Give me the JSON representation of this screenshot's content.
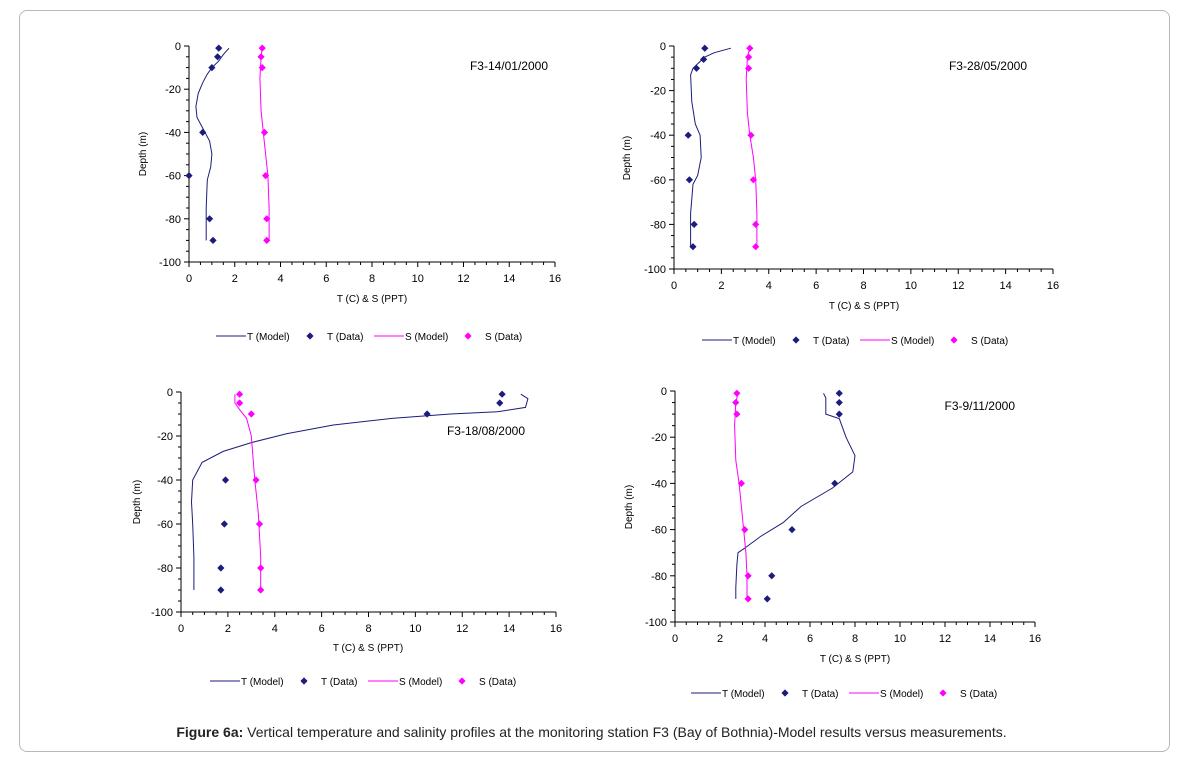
{
  "caption": {
    "label": "Figure 6a:",
    "text": " Vertical temperature and salinity profiles at the monitoring station F3 (Bay of Bothnia)-Model results versus measurements."
  },
  "colors": {
    "temperature": "#1c1c7c",
    "salinity": "#ff00ff",
    "axis": "#000000"
  },
  "chart_data": [
    {
      "type": "line",
      "title": "F3-14/01/2000",
      "xlabel": "T (C) & S (PPT)",
      "ylabel": "Depth (m)",
      "xlim": [
        0,
        16
      ],
      "ylim": [
        -100,
        0
      ],
      "xticks": [
        "0",
        "2",
        "4",
        "6",
        "8",
        "10",
        "12",
        "14",
        "16"
      ],
      "yticks": [
        "0",
        "-20",
        "-40",
        "-60",
        "-80",
        "-100"
      ],
      "legend": [
        "T (Model)",
        "T (Data)",
        "S (Model)",
        "S (Data)"
      ],
      "series": [
        {
          "name": "T (Model)",
          "kind": "line",
          "x": [
            1.75,
            1.5,
            1.3,
            1.0,
            0.8,
            0.6,
            0.4,
            0.3,
            0.35,
            0.6,
            0.9,
            1.0,
            0.95,
            0.8,
            0.75,
            0.75
          ],
          "y": [
            -1,
            -4,
            -7,
            -10,
            -13,
            -17,
            -22,
            -28,
            -33,
            -38,
            -44,
            -50,
            -56,
            -62,
            -75,
            -90
          ]
        },
        {
          "name": "T (Data)",
          "kind": "points",
          "x": [
            1.3,
            1.25,
            1.0,
            0.6,
            0.0,
            0.9,
            1.05
          ],
          "y": [
            -1,
            -5,
            -10,
            -40,
            -60,
            -80,
            -90
          ]
        },
        {
          "name": "S (Model)",
          "kind": "line",
          "x": [
            3.2,
            3.15,
            3.1,
            3.15,
            3.25,
            3.35,
            3.45,
            3.5,
            3.5
          ],
          "y": [
            -1,
            -5,
            -15,
            -30,
            -40,
            -50,
            -60,
            -75,
            -90
          ]
        },
        {
          "name": "S (Data)",
          "kind": "points",
          "x": [
            3.2,
            3.15,
            3.2,
            3.3,
            3.35,
            3.4,
            3.4
          ],
          "y": [
            -1,
            -5,
            -10,
            -40,
            -60,
            -80,
            -90
          ]
        }
      ]
    },
    {
      "type": "line",
      "title": "F3-28/05/2000",
      "xlabel": "T (C) & S (PPT)",
      "ylabel": "Depth (m)",
      "xlim": [
        0,
        16
      ],
      "ylim": [
        -100,
        0
      ],
      "xticks": [
        "0",
        "2",
        "4",
        "6",
        "8",
        "10",
        "12",
        "14",
        "16"
      ],
      "yticks": [
        "0",
        "-20",
        "-40",
        "-60",
        "-80",
        "-100"
      ],
      "legend": [
        "T (Model)",
        "T (Data)",
        "S (Model)",
        "S (Data)"
      ],
      "series": [
        {
          "name": "T (Model)",
          "kind": "line",
          "x": [
            2.4,
            1.7,
            1.3,
            1.0,
            0.8,
            0.7,
            0.75,
            0.9,
            1.1,
            1.15,
            1.0,
            0.8,
            0.7,
            0.7
          ],
          "y": [
            -1,
            -3,
            -5,
            -8,
            -10,
            -13,
            -25,
            -35,
            -40,
            -50,
            -58,
            -62,
            -75,
            -90
          ]
        },
        {
          "name": "T (Data)",
          "kind": "points",
          "x": [
            1.3,
            1.25,
            0.95,
            0.6,
            0.65,
            0.85,
            0.8
          ],
          "y": [
            -1,
            -6,
            -10,
            -40,
            -60,
            -80,
            -90
          ]
        },
        {
          "name": "S (Model)",
          "kind": "line",
          "x": [
            3.2,
            3.1,
            3.05,
            3.1,
            3.2,
            3.35,
            3.45,
            3.5,
            3.5
          ],
          "y": [
            -1,
            -5,
            -15,
            -30,
            -40,
            -50,
            -60,
            -75,
            -90
          ]
        },
        {
          "name": "S (Data)",
          "kind": "points",
          "x": [
            3.2,
            3.15,
            3.15,
            3.25,
            3.35,
            3.45,
            3.45
          ],
          "y": [
            -1,
            -5,
            -10,
            -40,
            -60,
            -80,
            -90
          ]
        }
      ]
    },
    {
      "type": "line",
      "title": "F3-18/08/2000",
      "xlabel": "T (C) & S (PPT)",
      "ylabel": "Depth (m)",
      "xlim": [
        0,
        16
      ],
      "ylim": [
        -100,
        0
      ],
      "xticks": [
        "0",
        "2",
        "4",
        "6",
        "8",
        "10",
        "12",
        "14",
        "16"
      ],
      "yticks": [
        "0",
        "-20",
        "-40",
        "-60",
        "-80",
        "-100"
      ],
      "legend": [
        "T (Model)",
        "T (Data)",
        "S (Model)",
        "S (Data)"
      ],
      "series": [
        {
          "name": "T (Model)",
          "kind": "line",
          "x": [
            14.5,
            14.8,
            14.7,
            13.5,
            11.5,
            9.0,
            6.5,
            4.5,
            3.0,
            1.8,
            0.9,
            0.5,
            0.45,
            0.5,
            0.55,
            0.55
          ],
          "y": [
            -1,
            -3,
            -7,
            -9,
            -10,
            -12,
            -15,
            -19,
            -23,
            -27,
            -32,
            -40,
            -50,
            -60,
            -75,
            -90
          ]
        },
        {
          "name": "T (Data)",
          "kind": "points",
          "x": [
            13.7,
            13.6,
            10.5,
            1.9,
            1.85,
            1.7,
            1.7
          ],
          "y": [
            -1,
            -5,
            -10,
            -40,
            -60,
            -80,
            -90
          ]
        },
        {
          "name": "S (Model)",
          "kind": "line",
          "x": [
            2.3,
            2.3,
            2.5,
            2.8,
            3.0,
            3.15,
            3.3,
            3.4,
            3.4
          ],
          "y": [
            -1,
            -5,
            -8,
            -12,
            -20,
            -40,
            -55,
            -75,
            -90
          ]
        },
        {
          "name": "S (Data)",
          "kind": "points",
          "x": [
            2.5,
            2.5,
            3.0,
            3.2,
            3.35,
            3.4,
            3.4
          ],
          "y": [
            -1,
            -5,
            -10,
            -40,
            -60,
            -80,
            -90
          ]
        }
      ]
    },
    {
      "type": "line",
      "title": "F3-9/11/2000",
      "xlabel": "T (C) & S (PPT)",
      "ylabel": "Depth (m)",
      "xlim": [
        0,
        16
      ],
      "ylim": [
        -100,
        0
      ],
      "xticks": [
        "0",
        "2",
        "4",
        "6",
        "8",
        "10",
        "12",
        "14",
        "16"
      ],
      "yticks": [
        "0",
        "-20",
        "-40",
        "-60",
        "-80",
        "-100"
      ],
      "legend": [
        "T (Model)",
        "T (Data)",
        "S (Model)",
        "S (Data)"
      ],
      "series": [
        {
          "name": "T (Model)",
          "kind": "line",
          "x": [
            6.6,
            6.7,
            6.7,
            7.3,
            7.6,
            8.0,
            7.9,
            7.0,
            5.6,
            4.8,
            3.8,
            3.1,
            2.8,
            2.75,
            2.7,
            2.7
          ],
          "y": [
            -1,
            -3,
            -10,
            -12,
            -20,
            -28,
            -35,
            -42,
            -50,
            -57,
            -63,
            -68,
            -70,
            -75,
            -85,
            -90
          ]
        },
        {
          "name": "T (Data)",
          "kind": "points",
          "x": [
            7.3,
            7.3,
            7.3,
            7.1,
            5.2,
            4.3,
            4.1
          ],
          "y": [
            -1,
            -5,
            -10,
            -40,
            -60,
            -80,
            -90
          ]
        },
        {
          "name": "S (Model)",
          "kind": "line",
          "x": [
            2.8,
            2.7,
            2.65,
            2.7,
            2.85,
            3.0,
            3.15,
            3.2,
            3.2
          ],
          "y": [
            -1,
            -5,
            -15,
            -30,
            -40,
            -55,
            -70,
            -80,
            -90
          ]
        },
        {
          "name": "S (Data)",
          "kind": "points",
          "x": [
            2.75,
            2.7,
            2.75,
            2.95,
            3.1,
            3.25,
            3.25
          ],
          "y": [
            -1,
            -5,
            -10,
            -40,
            -60,
            -80,
            -90
          ]
        }
      ]
    }
  ]
}
